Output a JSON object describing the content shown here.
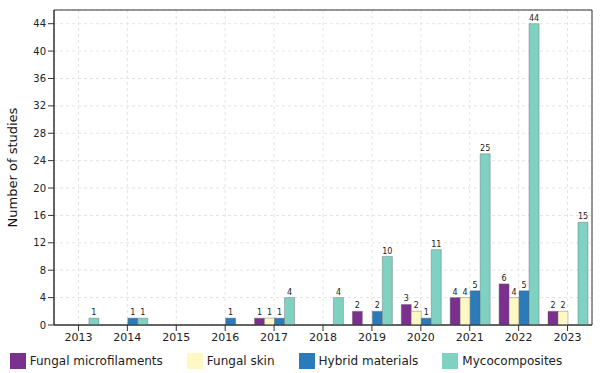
{
  "chart_data": {
    "type": "bar",
    "y_label": "Number of studies",
    "categories": [
      "2013",
      "2014",
      "2015",
      "2016",
      "2017",
      "2018",
      "2019",
      "2020",
      "2021",
      "2022",
      "2023"
    ],
    "series": [
      {
        "name": "Fungal microfilaments",
        "color": "#7b2f8e",
        "values": [
          null,
          null,
          null,
          null,
          1,
          null,
          2,
          3,
          4,
          6,
          2
        ]
      },
      {
        "name": "Fungal skin",
        "color": "#fdf8c4",
        "values": [
          null,
          null,
          null,
          null,
          1,
          null,
          null,
          2,
          4,
          4,
          2
        ]
      },
      {
        "name": "Hybrid materials",
        "color": "#2b7bba",
        "values": [
          null,
          1,
          null,
          1,
          1,
          null,
          2,
          1,
          5,
          5,
          null
        ]
      },
      {
        "name": "Mycocomposites",
        "color": "#7fd1c1",
        "values": [
          1,
          1,
          null,
          null,
          4,
          4,
          10,
          11,
          25,
          44,
          15
        ]
      }
    ],
    "ylim": [
      0,
      46
    ],
    "yticks": [
      0,
      4,
      8,
      12,
      16,
      20,
      24,
      28,
      32,
      36,
      40,
      44
    ],
    "grid": true,
    "legend": "bottom",
    "data_labels": true
  }
}
